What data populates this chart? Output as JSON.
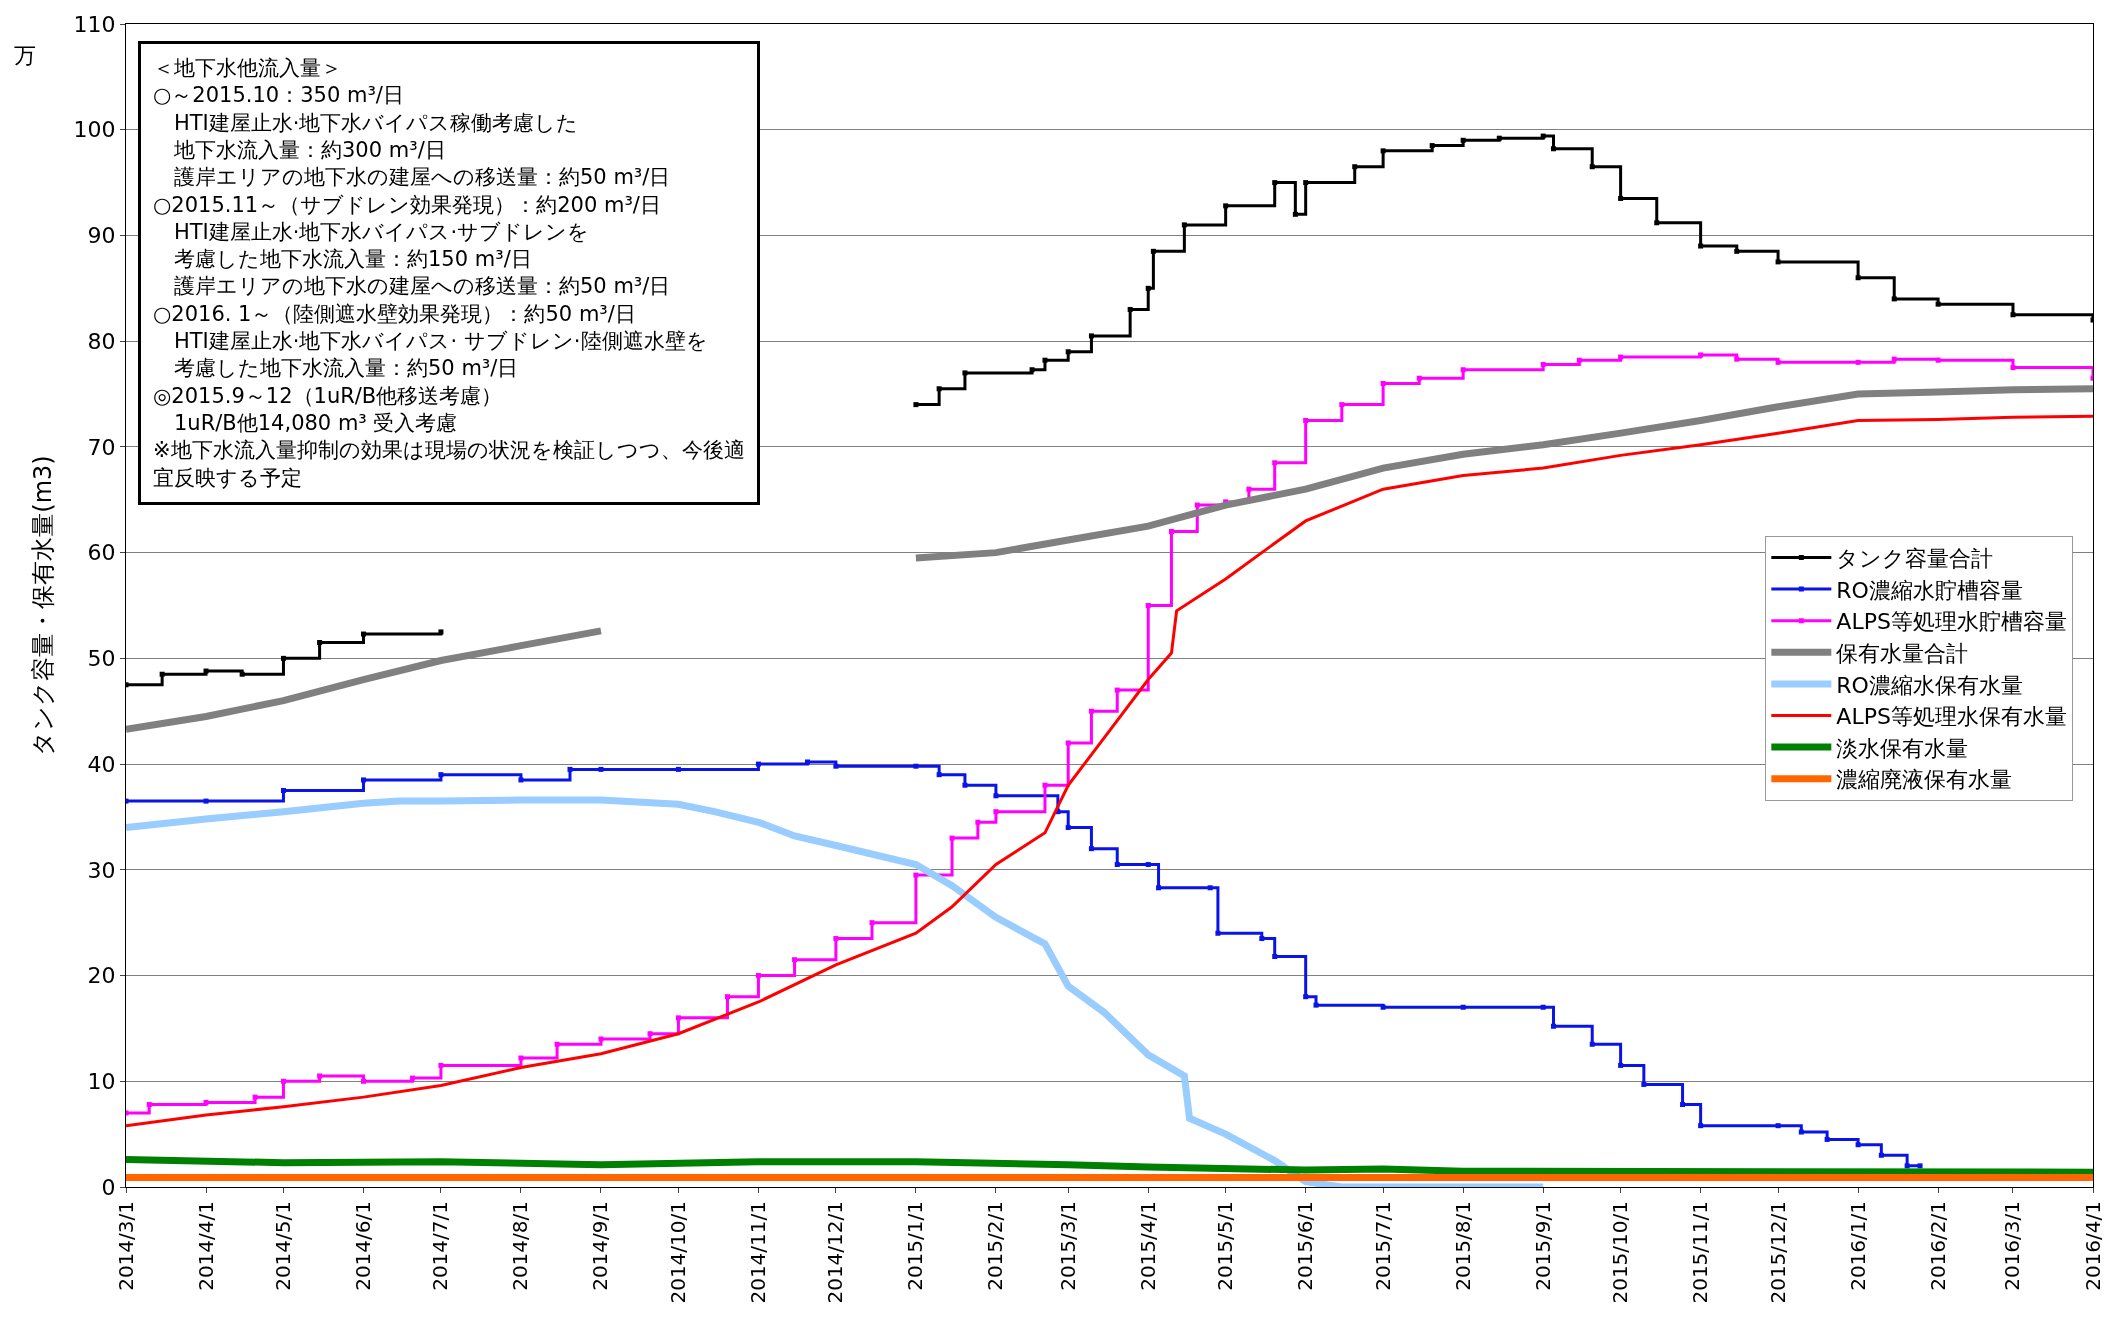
{
  "chart_data": {
    "type": "line",
    "ylabel": "タンク容量・保有水量(m3)",
    "ylim": [
      0,
      110
    ],
    "yticks": [
      0,
      10,
      20,
      30,
      40,
      50,
      60,
      70,
      80,
      90,
      100,
      110
    ],
    "xlim": [
      "2014-03-01",
      "2016-04-01"
    ],
    "xticks": [
      {
        "value": "2014-03-01",
        "label": "2014/3/1"
      },
      {
        "value": "2014-04-01",
        "label": "2014/4/1"
      },
      {
        "value": "2014-05-01",
        "label": "2014/5/1"
      },
      {
        "value": "2014-06-01",
        "label": "2014/6/1"
      },
      {
        "value": "2014-07-01",
        "label": "2014/7/1"
      },
      {
        "value": "2014-08-01",
        "label": "2014/8/1"
      },
      {
        "value": "2014-09-01",
        "label": "2014/9/1"
      },
      {
        "value": "2014-10-01",
        "label": "2014/10/1"
      },
      {
        "value": "2014-11-01",
        "label": "2014/11/1"
      },
      {
        "value": "2014-12-01",
        "label": "2014/12/1"
      },
      {
        "value": "2015-01-01",
        "label": "2015/1/1"
      },
      {
        "value": "2015-02-01",
        "label": "2015/2/1"
      },
      {
        "value": "2015-03-01",
        "label": "2015/3/1"
      },
      {
        "value": "2015-04-01",
        "label": "2015/4/1"
      },
      {
        "value": "2015-05-01",
        "label": "2015/5/1"
      },
      {
        "value": "2015-06-01",
        "label": "2015/6/1"
      },
      {
        "value": "2015-07-01",
        "label": "2015/7/1"
      },
      {
        "value": "2015-08-01",
        "label": "2015/8/1"
      },
      {
        "value": "2015-09-01",
        "label": "2015/9/1"
      },
      {
        "value": "2015-10-01",
        "label": "2015/10/1"
      },
      {
        "value": "2015-11-01",
        "label": "2015/11/1"
      },
      {
        "value": "2015-12-01",
        "label": "2015/12/1"
      },
      {
        "value": "2016-01-01",
        "label": "2016/1/1"
      },
      {
        "value": "2016-02-01",
        "label": "2016/2/1"
      },
      {
        "value": "2016-03-01",
        "label": "2016/3/1"
      },
      {
        "value": "2016-04-01",
        "label": "2016/4/1"
      }
    ],
    "grid": "y",
    "legend": "right",
    "annotations": [
      "万",
      "＜地下水他流入量＞",
      "○～2015.10：350 m³/日",
      "　HTI建屋止水·地下水バイパス稼働考慮した",
      "　地下水流入量：約300 m³/日",
      "　護岸エリアの地下水の建屋への移送量：約50 m³/日",
      "○2015.11～（サブドレン効果発現）：約200 m³/日",
      "　HTI建屋止水·地下水バイパス·サブドレンを",
      "　考慮した地下水流入量：約150 m³/日",
      "　護岸エリアの地下水の建屋への移送量：約50 m³/日",
      "○2016. 1～（陸側遮水壁効果発現）：約50 m³/日",
      "　HTI建屋止水·地下水バイパス· サブドレン·陸側遮水壁を",
      "　考慮した地下水流入量：約50 m³/日",
      "◎2015.9～12（1uR/B他移送考慮）",
      "　1uR/B他14,080 m³ 受入考慮",
      "※地下水流入量抑制の効果は現場の状況を検証しつつ、今後適",
      "宜反映する予定"
    ],
    "series": [
      {
        "name": "タンク容量合計",
        "type": "step",
        "marker": "square",
        "color": "#000000",
        "x": [
          "2014-03-01",
          "2014-03-15",
          "2014-04-01",
          "2014-04-15",
          "2014-05-01",
          "2014-05-15",
          "2014-06-01",
          "2014-07-01",
          "2014-08-01",
          "2015-01-01",
          "2015-01-10",
          "2015-01-20",
          "2015-02-15",
          "2015-02-20",
          "2015-03-01",
          "2015-03-10",
          "2015-03-25",
          "2015-04-01",
          "2015-04-03",
          "2015-04-15",
          "2015-05-01",
          "2015-05-20",
          "2015-05-28",
          "2015-06-01",
          "2015-06-20",
          "2015-07-01",
          "2015-07-20",
          "2015-08-01",
          "2015-08-15",
          "2015-09-01",
          "2015-09-05",
          "2015-09-20",
          "2015-10-01",
          "2015-10-15",
          "2015-11-01",
          "2015-11-15",
          "2015-12-01",
          "2016-01-01",
          "2016-01-15",
          "2016-02-01",
          "2016-03-01",
          "2016-04-01"
        ],
        "values": [
          47.5,
          48.5,
          48.8,
          48.5,
          50,
          51.5,
          52.3,
          52.5,
          null,
          74,
          75.5,
          77,
          77.3,
          78.2,
          79,
          80.5,
          83,
          85,
          88.5,
          91,
          92.8,
          95,
          92,
          95,
          96.5,
          98,
          98.5,
          99,
          99.2,
          99.4,
          98.2,
          96.5,
          93.5,
          91.2,
          89,
          88.5,
          87.5,
          86,
          84,
          83.5,
          82.5,
          82
        ]
      },
      {
        "name": "RO濃縮水貯槽容量",
        "type": "step",
        "marker": "square",
        "color": "#0a14e6",
        "x": [
          "2014-03-01",
          "2014-04-01",
          "2014-05-01",
          "2014-06-01",
          "2014-07-01",
          "2014-08-01",
          "2014-08-20",
          "2014-09-01",
          "2014-10-01",
          "2014-11-01",
          "2014-11-20",
          "2014-12-01",
          "2015-01-01",
          "2015-01-10",
          "2015-01-20",
          "2015-02-01",
          "2015-02-25",
          "2015-03-01",
          "2015-03-10",
          "2015-03-20",
          "2015-04-01",
          "2015-04-05",
          "2015-04-25",
          "2015-04-28",
          "2015-05-15",
          "2015-05-20",
          "2015-06-01",
          "2015-06-05",
          "2015-07-01",
          "2015-08-01",
          "2015-09-01",
          "2015-09-05",
          "2015-09-20",
          "2015-10-01",
          "2015-10-10",
          "2015-10-25",
          "2015-11-01",
          "2015-12-01",
          "2015-12-10",
          "2015-12-20",
          "2016-01-01",
          "2016-01-10",
          "2016-01-20",
          "2016-01-25"
        ],
        "values": [
          36.5,
          36.5,
          37.5,
          38.5,
          39,
          38.5,
          39.5,
          39.5,
          39.5,
          40,
          40.2,
          39.8,
          39.8,
          39,
          38,
          37,
          35.5,
          34,
          32,
          30.5,
          30.5,
          28.3,
          28.3,
          24,
          23.5,
          21.8,
          18,
          17.2,
          17,
          17,
          17,
          15.2,
          13.5,
          11.5,
          9.7,
          7.8,
          5.8,
          5.8,
          5.2,
          4.5,
          4,
          3,
          2,
          2
        ]
      },
      {
        "name": "ALPS等処理水貯槽容量",
        "type": "step",
        "marker": "square",
        "color": "#ff00ff",
        "x": [
          "2014-03-01",
          "2014-03-10",
          "2014-04-01",
          "2014-04-20",
          "2014-05-01",
          "2014-05-15",
          "2014-06-01",
          "2014-06-20",
          "2014-07-01",
          "2014-08-01",
          "2014-08-15",
          "2014-09-01",
          "2014-09-20",
          "2014-10-01",
          "2014-10-20",
          "2014-11-01",
          "2014-11-15",
          "2014-12-01",
          "2014-12-15",
          "2015-01-01",
          "2015-01-15",
          "2015-01-25",
          "2015-02-01",
          "2015-02-20",
          "2015-03-01",
          "2015-03-10",
          "2015-03-20",
          "2015-04-01",
          "2015-04-10",
          "2015-04-20",
          "2015-05-01",
          "2015-05-10",
          "2015-05-20",
          "2015-06-01",
          "2015-06-15",
          "2015-07-01",
          "2015-07-15",
          "2015-08-01",
          "2015-09-01",
          "2015-09-15",
          "2015-10-01",
          "2015-11-01",
          "2015-11-15",
          "2015-12-01",
          "2016-01-01",
          "2016-01-15",
          "2016-02-01",
          "2016-03-01",
          "2016-04-01"
        ],
        "values": [
          7,
          7.8,
          8,
          8.5,
          10,
          10.5,
          10,
          10.3,
          11.5,
          12.2,
          13.5,
          14,
          14.5,
          16,
          18,
          20,
          21.5,
          23.5,
          25,
          29.5,
          33,
          34.5,
          35.5,
          38,
          42,
          45,
          47,
          55,
          62,
          64.5,
          64.8,
          66,
          68.5,
          72.5,
          74,
          76,
          76.5,
          77.3,
          77.8,
          78.2,
          78.5,
          78.7,
          78.3,
          78,
          78,
          78.3,
          78.2,
          77.5,
          76.5
        ]
      },
      {
        "name": "保有水量合計",
        "marker": "none",
        "color": "#808080",
        "x": [
          "2014-03-01",
          "2014-04-01",
          "2014-05-01",
          "2014-06-01",
          "2014-07-01",
          "2014-08-01",
          "2014-09-01",
          "2014-10-01",
          "2015-01-01",
          "2015-02-01",
          "2015-03-01",
          "2015-04-01",
          "2015-05-01",
          "2015-06-01",
          "2015-07-01",
          "2015-08-01",
          "2015-09-01",
          "2015-10-01",
          "2015-11-01",
          "2015-12-01",
          "2016-01-01",
          "2016-02-01",
          "2016-03-01",
          "2016-04-01"
        ],
        "values": [
          43.3,
          44.5,
          46,
          48,
          49.8,
          51.2,
          52.6,
          null,
          59.5,
          60,
          61.2,
          62.5,
          64.5,
          66,
          68,
          69.3,
          70.2,
          71.3,
          72.5,
          73.8,
          75,
          75.2,
          75.4,
          75.5
        ]
      },
      {
        "name": "RO濃縮水保有水量",
        "marker": "none",
        "color": "#99ccff",
        "x": [
          "2014-03-01",
          "2014-04-01",
          "2014-05-01",
          "2014-06-01",
          "2014-06-15",
          "2014-07-01",
          "2014-08-01",
          "2014-09-01",
          "2014-10-01",
          "2014-10-15",
          "2014-11-01",
          "2014-11-15",
          "2014-12-01",
          "2015-01-01",
          "2015-01-15",
          "2015-02-01",
          "2015-02-20",
          "2015-03-01",
          "2015-03-15",
          "2015-04-01",
          "2015-04-15",
          "2015-04-17",
          "2015-05-01",
          "2015-05-20",
          "2015-06-01",
          "2015-06-15",
          "2015-07-01",
          "2015-08-01",
          "2015-09-01"
        ],
        "values": [
          34,
          34.8,
          35.5,
          36.3,
          36.5,
          36.5,
          36.6,
          36.6,
          36.2,
          35.5,
          34.5,
          33.2,
          32.3,
          30.5,
          28.5,
          25.5,
          23,
          19,
          16.5,
          12.5,
          10.5,
          6.5,
          5,
          2.5,
          0.5,
          0,
          0,
          0,
          0
        ]
      },
      {
        "name": "ALPS等処理水保有水量",
        "marker": "none",
        "color": "#ff0000",
        "x": [
          "2014-03-01",
          "2014-04-01",
          "2014-05-01",
          "2014-06-01",
          "2014-07-01",
          "2014-08-01",
          "2014-09-01",
          "2014-10-01",
          "2014-11-01",
          "2014-12-01",
          "2015-01-01",
          "2015-01-15",
          "2015-02-01",
          "2015-02-20",
          "2015-03-01",
          "2015-03-15",
          "2015-04-01",
          "2015-04-10",
          "2015-04-12",
          "2015-05-01",
          "2015-05-15",
          "2015-06-01",
          "2015-07-01",
          "2015-08-01",
          "2015-09-01",
          "2015-10-01",
          "2015-11-01",
          "2015-12-01",
          "2016-01-01",
          "2016-02-01",
          "2016-03-01",
          "2016-04-01"
        ],
        "values": [
          5.8,
          6.8,
          7.6,
          8.5,
          9.6,
          11.3,
          12.6,
          14.5,
          17.5,
          21,
          24,
          26.5,
          30.5,
          33.5,
          38,
          42.5,
          48,
          50.5,
          54.5,
          57.5,
          60,
          63,
          66,
          67.3,
          68,
          69.2,
          70.2,
          71.3,
          72.5,
          72.6,
          72.8,
          72.9
        ]
      },
      {
        "name": "淡水保有水量",
        "marker": "none",
        "color": "#008000",
        "x": [
          "2014-03-01",
          "2014-05-01",
          "2014-07-01",
          "2014-09-01",
          "2014-11-01",
          "2015-01-01",
          "2015-03-01",
          "2015-04-01",
          "2015-06-01",
          "2015-07-01",
          "2015-08-01",
          "2016-04-01"
        ],
        "values": [
          2.6,
          2.3,
          2.4,
          2.1,
          2.4,
          2.4,
          2.1,
          1.9,
          1.6,
          1.7,
          1.5,
          1.4
        ]
      },
      {
        "name": "濃縮廃液保有水量",
        "marker": "none",
        "color": "#ff6600",
        "x": [
          "2014-03-01",
          "2016-04-01"
        ],
        "values": [
          0.9,
          0.9
        ]
      }
    ]
  }
}
